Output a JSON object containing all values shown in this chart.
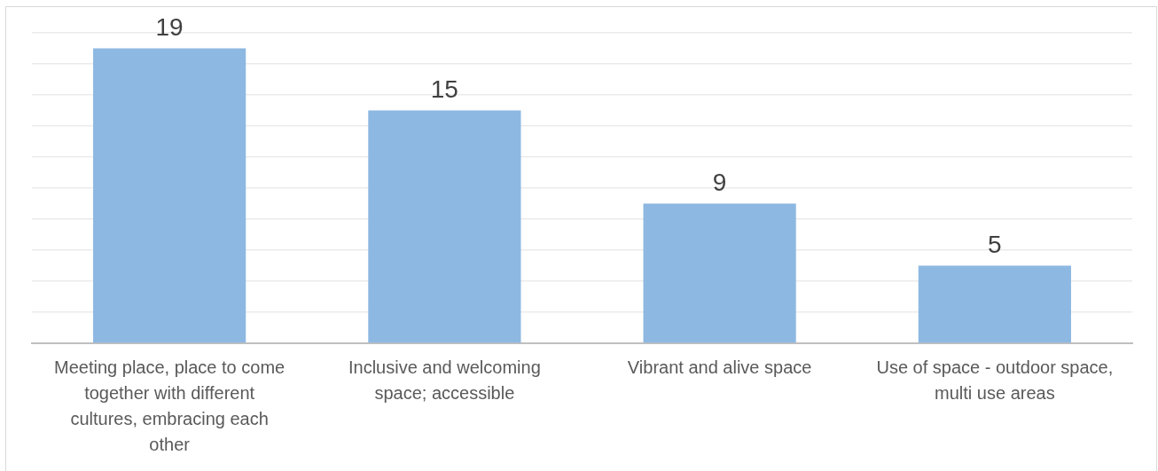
{
  "chart_data": {
    "type": "bar",
    "categories": [
      "Meeting place, place to come together with different cultures, embracing each other",
      "Inclusive and welcoming space; accessible",
      "Vibrant and alive space",
      "Use of space - outdoor space, multi use areas"
    ],
    "values": [
      19,
      15,
      9,
      5
    ],
    "color": "#8db8e2",
    "ylim": [
      0,
      20
    ],
    "yticks": [
      {
        "value": 0,
        "label": null
      },
      {
        "value": 2,
        "label": null
      },
      {
        "value": 4,
        "label": null
      },
      {
        "value": 6,
        "label": null
      },
      {
        "value": 8,
        "label": null
      },
      {
        "value": 10,
        "label": null
      },
      {
        "value": 12,
        "label": null
      },
      {
        "value": 14,
        "label": null
      },
      {
        "value": 16,
        "label": null
      },
      {
        "value": 18,
        "label": null
      },
      {
        "value": 20,
        "label": null
      }
    ],
    "grid": "y",
    "data_labels": true,
    "tick_labels": "x"
  }
}
